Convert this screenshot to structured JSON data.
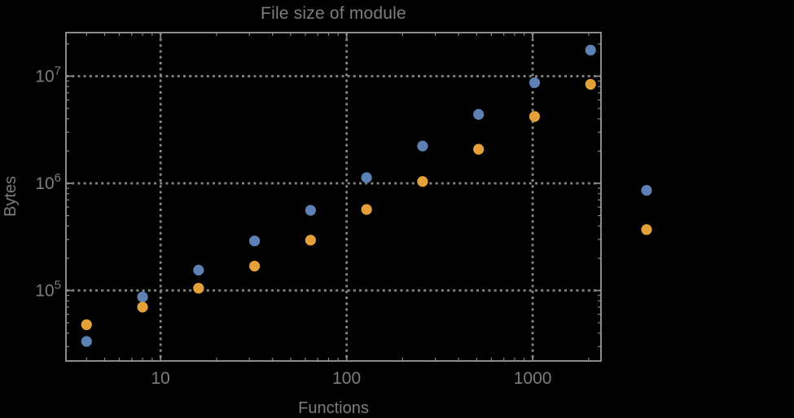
{
  "window": {
    "background": "#000000"
  },
  "chart_data": {
    "type": "scatter",
    "title": "File size of module",
    "xlabel": "Functions",
    "ylabel": "Bytes",
    "xscale": "log",
    "yscale": "log",
    "xlim": [
      3.1,
      2330
    ],
    "ylim": [
      22000,
      25500000
    ],
    "grid": "dotted-at-major-ticks",
    "legend": "none",
    "clip_points": false,
    "x": [
      4,
      8,
      16,
      32,
      64,
      128,
      256,
      512,
      1024,
      2048,
      4096
    ],
    "series": [
      {
        "name": "series-blue",
        "color": "#5e81b5",
        "values": [
          33500,
          87000,
          155000,
          290000,
          560000,
          1130000,
          2230000,
          4400000,
          8700000,
          17500000,
          860000
        ]
      },
      {
        "name": "series-orange",
        "color": "#e5a139",
        "values": [
          48000,
          70000,
          105000,
          169000,
          295000,
          570000,
          1040000,
          2080000,
          4200000,
          8400000,
          370000
        ]
      }
    ],
    "x_ticks": [
      {
        "value": 10,
        "label": "10"
      },
      {
        "value": 100,
        "label": "100"
      },
      {
        "value": 1000,
        "label": "1000"
      }
    ],
    "y_ticks": [
      {
        "value": 100000,
        "base": "10",
        "exp": "5"
      },
      {
        "value": 1000000,
        "base": "10",
        "exp": "6"
      },
      {
        "value": 10000000,
        "base": "10",
        "exp": "7"
      }
    ],
    "colors": {
      "frame": "#8b8b8b",
      "grid": "#878787",
      "tick": "#8b8b8b",
      "text": "#7d7d7d",
      "background": "#000000"
    },
    "point_radius": 6.6
  }
}
